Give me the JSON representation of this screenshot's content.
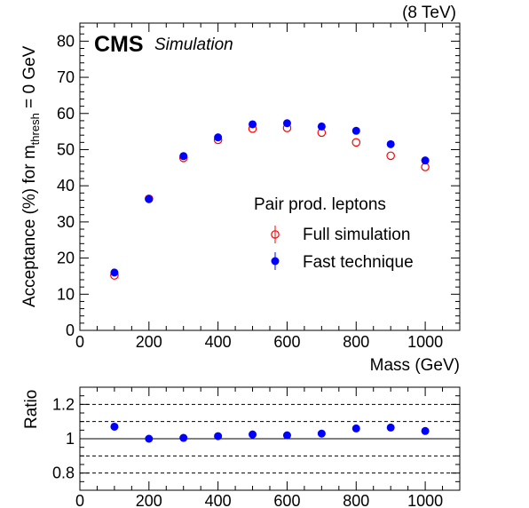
{
  "header": {
    "energy_label": "(8 TeV)",
    "experiment": "CMS",
    "status": "Simulation"
  },
  "chart_data": [
    {
      "type": "scatter",
      "title": "",
      "xlabel": "Mass (GeV)",
      "ylabel_main": "Acceptance (%) for m",
      "ylabel_subscript": "thresh",
      "ylabel_tail": " = 0 GeV",
      "xlim": [
        0,
        1100
      ],
      "ylim": [
        0,
        85
      ],
      "x_ticks": [
        0,
        200,
        400,
        600,
        800,
        1000
      ],
      "y_ticks": [
        0,
        10,
        20,
        30,
        40,
        50,
        60,
        70,
        80
      ],
      "grid": false,
      "legend": {
        "header": "Pair prod. leptons",
        "placement": "center-right"
      },
      "series": [
        {
          "name": "Full simulation",
          "marker": "open-circle",
          "color": "#ff0000",
          "x": [
            100,
            200,
            300,
            400,
            500,
            600,
            700,
            800,
            900,
            1000
          ],
          "y": [
            15.2,
            36.4,
            47.7,
            52.7,
            55.8,
            56.0,
            54.7,
            52.0,
            48.3,
            45.2
          ]
        },
        {
          "name": "Fast technique",
          "marker": "filled-circle",
          "color": "#0000ff",
          "x": [
            100,
            200,
            300,
            400,
            500,
            600,
            700,
            800,
            900,
            1000
          ],
          "y": [
            16.0,
            36.3,
            48.2,
            53.4,
            57.0,
            57.3,
            56.4,
            55.2,
            51.5,
            47.0
          ]
        }
      ]
    },
    {
      "type": "scatter",
      "title": "",
      "xlabel": "",
      "ylabel": "Ratio",
      "xlim": [
        0,
        1100
      ],
      "ylim": [
        0.7,
        1.3
      ],
      "x_ticks": [
        0,
        200,
        400,
        600,
        800,
        1000
      ],
      "y_ticks": [
        0.8,
        1,
        1.2
      ],
      "reference_lines": [
        {
          "y": 1.0,
          "style": "solid"
        },
        {
          "y": 0.8,
          "style": "dashed"
        },
        {
          "y": 0.9,
          "style": "dashed"
        },
        {
          "y": 1.1,
          "style": "dashed"
        },
        {
          "y": 1.2,
          "style": "dashed"
        }
      ],
      "series": [
        {
          "marker": "filled-circle",
          "color": "#0000ff",
          "x": [
            100,
            200,
            300,
            400,
            500,
            600,
            700,
            800,
            900,
            1000
          ],
          "y": [
            1.07,
            1.0,
            1.005,
            1.015,
            1.025,
            1.02,
            1.03,
            1.06,
            1.065,
            1.045
          ]
        }
      ]
    }
  ]
}
